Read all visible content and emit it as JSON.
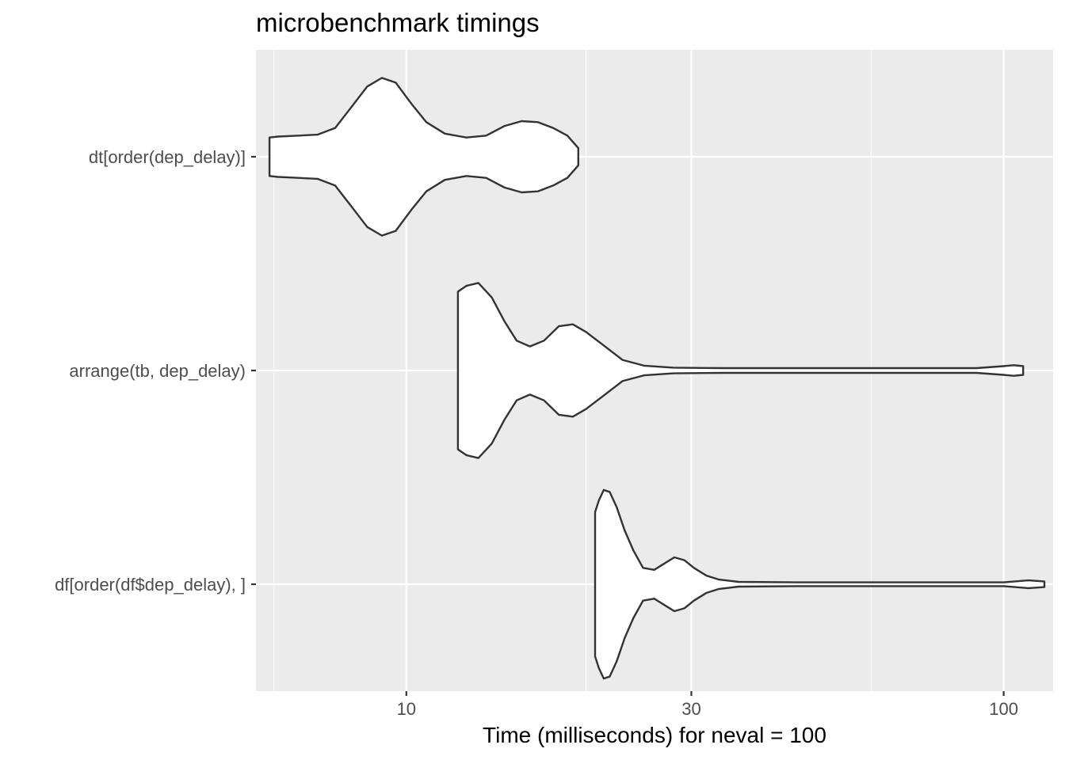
{
  "chart_data": {
    "type": "violin",
    "title": "microbenchmark timings",
    "xlabel": "Time (milliseconds) for neval = 100",
    "ylabel": "",
    "x_scale": "log10",
    "xlim": [
      5.6,
      121
    ],
    "x_ticks": [
      10,
      30,
      100
    ],
    "x_tick_labels": [
      "10",
      "30",
      "100"
    ],
    "x_minor_ticks": [
      6,
      20,
      60
    ],
    "grid": true,
    "legend": "none",
    "colors": {
      "panel": "#ebebeb",
      "grid": "#ffffff",
      "outline": "#333333",
      "fill": "#ffffff"
    },
    "categories": [
      "dt[order(dep_delay)]",
      "arrange(tb, dep_delay)",
      "df[order(df$dep_delay), ]"
    ],
    "series": [
      {
        "name": "dt[order(dep_delay)]",
        "range": [
          5.9,
          19.4
        ],
        "density": [
          [
            5.9,
            0.2
          ],
          [
            6.1,
            0.21
          ],
          [
            6.6,
            0.22
          ],
          [
            7.1,
            0.23
          ],
          [
            7.6,
            0.3
          ],
          [
            8.1,
            0.52
          ],
          [
            8.6,
            0.73
          ],
          [
            9.1,
            0.82
          ],
          [
            9.6,
            0.77
          ],
          [
            10.2,
            0.55
          ],
          [
            10.8,
            0.36
          ],
          [
            11.6,
            0.24
          ],
          [
            12.6,
            0.2
          ],
          [
            13.6,
            0.22
          ],
          [
            14.6,
            0.32
          ],
          [
            15.6,
            0.37
          ],
          [
            16.6,
            0.36
          ],
          [
            17.6,
            0.3
          ],
          [
            18.6,
            0.22
          ],
          [
            19.4,
            0.09
          ]
        ]
      },
      {
        "name": "arrange(tb, dep_delay)",
        "range": [
          12.2,
          107.8
        ],
        "density": [
          [
            12.2,
            0.82
          ],
          [
            12.6,
            0.88
          ],
          [
            13.2,
            0.91
          ],
          [
            13.9,
            0.76
          ],
          [
            14.6,
            0.51
          ],
          [
            15.3,
            0.31
          ],
          [
            16.1,
            0.25
          ],
          [
            17.0,
            0.31
          ],
          [
            18.0,
            0.46
          ],
          [
            19.0,
            0.48
          ],
          [
            20.0,
            0.4
          ],
          [
            21.5,
            0.25
          ],
          [
            23.0,
            0.11
          ],
          [
            25.0,
            0.05
          ],
          [
            28.0,
            0.03
          ],
          [
            34.0,
            0.025
          ],
          [
            50.0,
            0.025
          ],
          [
            70.0,
            0.025
          ],
          [
            90.0,
            0.025
          ],
          [
            100.0,
            0.045
          ],
          [
            104.0,
            0.055
          ],
          [
            107.8,
            0.045
          ]
        ]
      },
      {
        "name": "df[order(df$dep_delay), ]",
        "range": [
          20.7,
          117.0
        ],
        "density": [
          [
            20.7,
            0.75
          ],
          [
            21.0,
            0.87
          ],
          [
            21.4,
            0.98
          ],
          [
            21.9,
            0.96
          ],
          [
            22.5,
            0.8
          ],
          [
            23.2,
            0.56
          ],
          [
            24.0,
            0.35
          ],
          [
            24.9,
            0.17
          ],
          [
            26.0,
            0.15
          ],
          [
            27.1,
            0.22
          ],
          [
            28.1,
            0.28
          ],
          [
            29.2,
            0.25
          ],
          [
            30.3,
            0.17
          ],
          [
            31.8,
            0.09
          ],
          [
            33.3,
            0.05
          ],
          [
            36.0,
            0.025
          ],
          [
            45.0,
            0.02
          ],
          [
            60.0,
            0.02
          ],
          [
            80.0,
            0.02
          ],
          [
            100.0,
            0.02
          ],
          [
            110.0,
            0.04
          ],
          [
            117.0,
            0.03
          ]
        ]
      }
    ]
  }
}
